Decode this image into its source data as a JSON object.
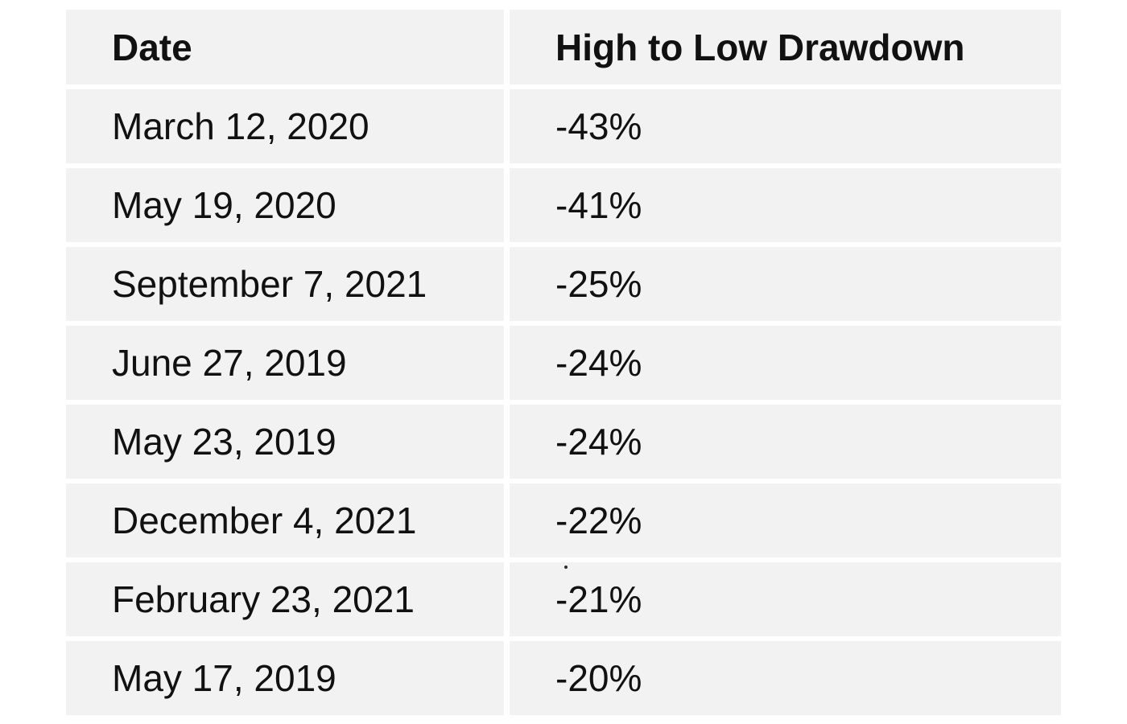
{
  "colors": {
    "page_background": "#ffffff",
    "cell_background": "#f2f2f2",
    "text": "#111111"
  },
  "chart_data": {
    "type": "table",
    "columns": [
      "Date",
      "High to Low Drawdown"
    ],
    "rows": [
      {
        "date": "March 12, 2020",
        "drawdown": "-43%"
      },
      {
        "date": "May 19, 2020",
        "drawdown": "-41%"
      },
      {
        "date": "September 7, 2021",
        "drawdown": "-25%"
      },
      {
        "date": "June 27, 2019",
        "drawdown": "-24%"
      },
      {
        "date": "May 23, 2019",
        "drawdown": "-24%"
      },
      {
        "date": "December 4, 2021",
        "drawdown": "-22%"
      },
      {
        "date": "February 23, 2021",
        "drawdown": "-21%"
      },
      {
        "date": "May 17, 2019",
        "drawdown": "-20%"
      }
    ],
    "drawdown_values_numeric": [
      -43,
      -41,
      -25,
      -24,
      -24,
      -22,
      -21,
      -20
    ],
    "layout": {
      "grid": "none",
      "style": "flat gray cells with white gutters",
      "value_alignment": "left"
    }
  }
}
